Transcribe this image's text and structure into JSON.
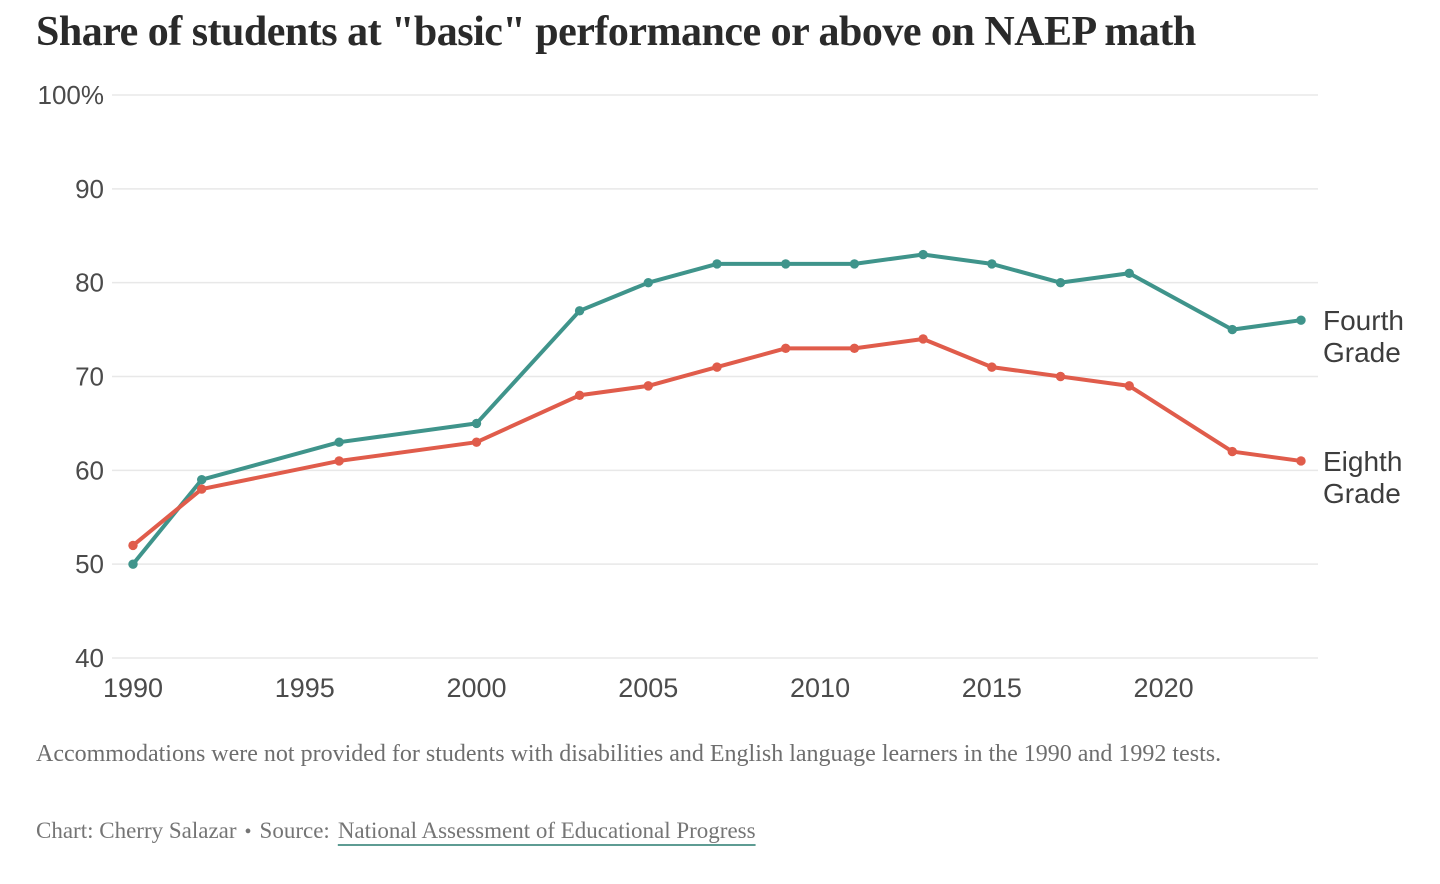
{
  "page": {
    "title": "Share of students at \"basic\" performance or above on NAEP math",
    "footnote": "Accommodations were not provided for students with disabilities and English language learners in the 1990 and 1992 tests.",
    "credit": {
      "chart_by": "Chart: Cherry Salazar",
      "separator": "•",
      "source_label": "Source:",
      "source_name": "National Assessment of Educational Progress"
    }
  },
  "chart_data": {
    "type": "line",
    "title": "Share of students at \"basic\" performance or above on NAEP math",
    "x": [
      1990,
      1992,
      1996,
      2000,
      2003,
      2005,
      2007,
      2009,
      2011,
      2013,
      2015,
      2017,
      2019,
      2022,
      2024
    ],
    "series": [
      {
        "name": "Fourth Grade",
        "color": "#3F948B",
        "values": [
          50,
          59,
          63,
          65,
          77,
          80,
          82,
          82,
          82,
          83,
          82,
          80,
          81,
          75,
          76
        ]
      },
      {
        "name": "Eighth Grade",
        "color": "#E05C4B",
        "values": [
          52,
          58,
          61,
          63,
          68,
          69,
          71,
          73,
          73,
          74,
          71,
          70,
          69,
          62,
          61
        ]
      }
    ],
    "xlim": [
      1990,
      2024
    ],
    "ylim": [
      40,
      100
    ],
    "x_tick_values": [
      1990,
      1995,
      2000,
      2005,
      2010,
      2015,
      2020
    ],
    "x_tick_labels": [
      "1990",
      "1995",
      "2000",
      "2005",
      "2010",
      "2015",
      "2020"
    ],
    "y_tick_values": [
      100,
      90,
      80,
      70,
      60,
      50,
      40
    ],
    "y_tick_labels": [
      "100%",
      "90",
      "80",
      "70",
      "60",
      "50",
      "40"
    ],
    "grid": "horizontal",
    "legend_position": "end-labels-right",
    "colors": {
      "grid": "#E8E8E8",
      "tick_text": "#4B4B4B",
      "end_label_text": "#3D3D3D"
    }
  }
}
